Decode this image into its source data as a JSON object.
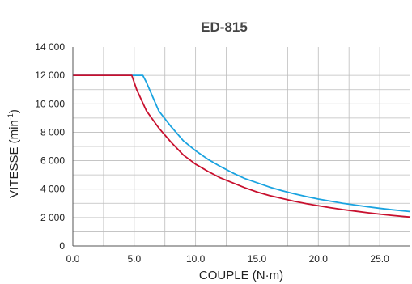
{
  "chart_data": {
    "type": "line",
    "title": "ED-815",
    "xlabel": "COUPLE (N·m)",
    "ylabel": {
      "main": "VITESSE (min",
      "sup": "-1",
      "close": ")"
    },
    "xlim": [
      0,
      27.5
    ],
    "ylim": [
      0,
      14000
    ],
    "xticks": [
      0,
      5,
      10,
      15,
      20,
      25
    ],
    "xtick_labels": [
      "0.0",
      "5.0",
      "10.0",
      "15.0",
      "20.0",
      "25.0"
    ],
    "yticks": [
      0,
      2000,
      4000,
      6000,
      8000,
      10000,
      12000,
      14000
    ],
    "ytick_labels": [
      "0",
      "2 000",
      "4 000",
      "6 000",
      "8 000",
      "10 000",
      "12 000",
      "14 000"
    ],
    "y_minor_step": 1000,
    "x_grid_step": 2.5,
    "grid": true,
    "series": [
      {
        "color": "#1aa3e0",
        "points": [
          [
            0,
            12000
          ],
          [
            5.7,
            12000
          ],
          [
            6,
            11500
          ],
          [
            6.5,
            10500
          ],
          [
            7,
            9500
          ],
          [
            8,
            8400
          ],
          [
            9,
            7400
          ],
          [
            10,
            6700
          ],
          [
            11,
            6100
          ],
          [
            12,
            5600
          ],
          [
            13,
            5150
          ],
          [
            14,
            4750
          ],
          [
            15,
            4450
          ],
          [
            16,
            4150
          ],
          [
            17,
            3900
          ],
          [
            18,
            3680
          ],
          [
            19,
            3480
          ],
          [
            20,
            3300
          ],
          [
            21,
            3150
          ],
          [
            22,
            3000
          ],
          [
            23,
            2880
          ],
          [
            24,
            2760
          ],
          [
            25,
            2650
          ],
          [
            26,
            2550
          ],
          [
            27.5,
            2420
          ]
        ]
      },
      {
        "color": "#c8102e",
        "points": [
          [
            0,
            12000
          ],
          [
            4.8,
            12000
          ],
          [
            5.2,
            11000
          ],
          [
            6,
            9500
          ],
          [
            6.5,
            8900
          ],
          [
            7,
            8300
          ],
          [
            8,
            7300
          ],
          [
            9,
            6400
          ],
          [
            10,
            5750
          ],
          [
            11,
            5250
          ],
          [
            12,
            4800
          ],
          [
            13,
            4450
          ],
          [
            14,
            4100
          ],
          [
            15,
            3800
          ],
          [
            16,
            3550
          ],
          [
            17,
            3350
          ],
          [
            18,
            3150
          ],
          [
            19,
            2980
          ],
          [
            20,
            2830
          ],
          [
            21,
            2690
          ],
          [
            22,
            2560
          ],
          [
            23,
            2450
          ],
          [
            24,
            2340
          ],
          [
            25,
            2240
          ],
          [
            26,
            2150
          ],
          [
            27.5,
            2030
          ]
        ]
      }
    ]
  }
}
